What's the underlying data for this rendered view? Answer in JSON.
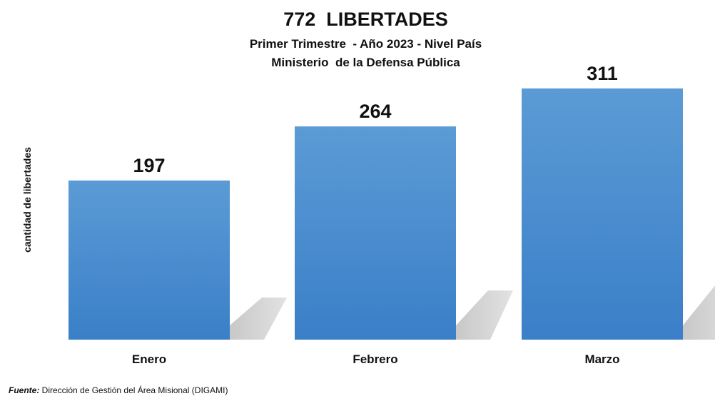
{
  "chart_data": {
    "type": "bar",
    "title": "772  LIBERTADES",
    "subtitle_lines": [
      "Primer Trimestre  - Año 2023 - Nivel País",
      "Ministerio  de la Defensa Pública"
    ],
    "ylabel": "cantidad de libertades",
    "categories": [
      "Enero",
      "Febrero",
      "Marzo"
    ],
    "values": [
      197,
      264,
      311
    ],
    "data_labels": [
      "197",
      "264",
      "311"
    ],
    "ylim": [
      0,
      311
    ],
    "grid": false,
    "legend": "none",
    "bar_color_top": "#5b9bd5",
    "bar_color_bottom": "#3a7fc8",
    "shadow_color": "#d0d0d0"
  },
  "footer": {
    "label": "Fuente:",
    "text": " Dirección de Gestión del Área Misional (DIGAMI)"
  }
}
